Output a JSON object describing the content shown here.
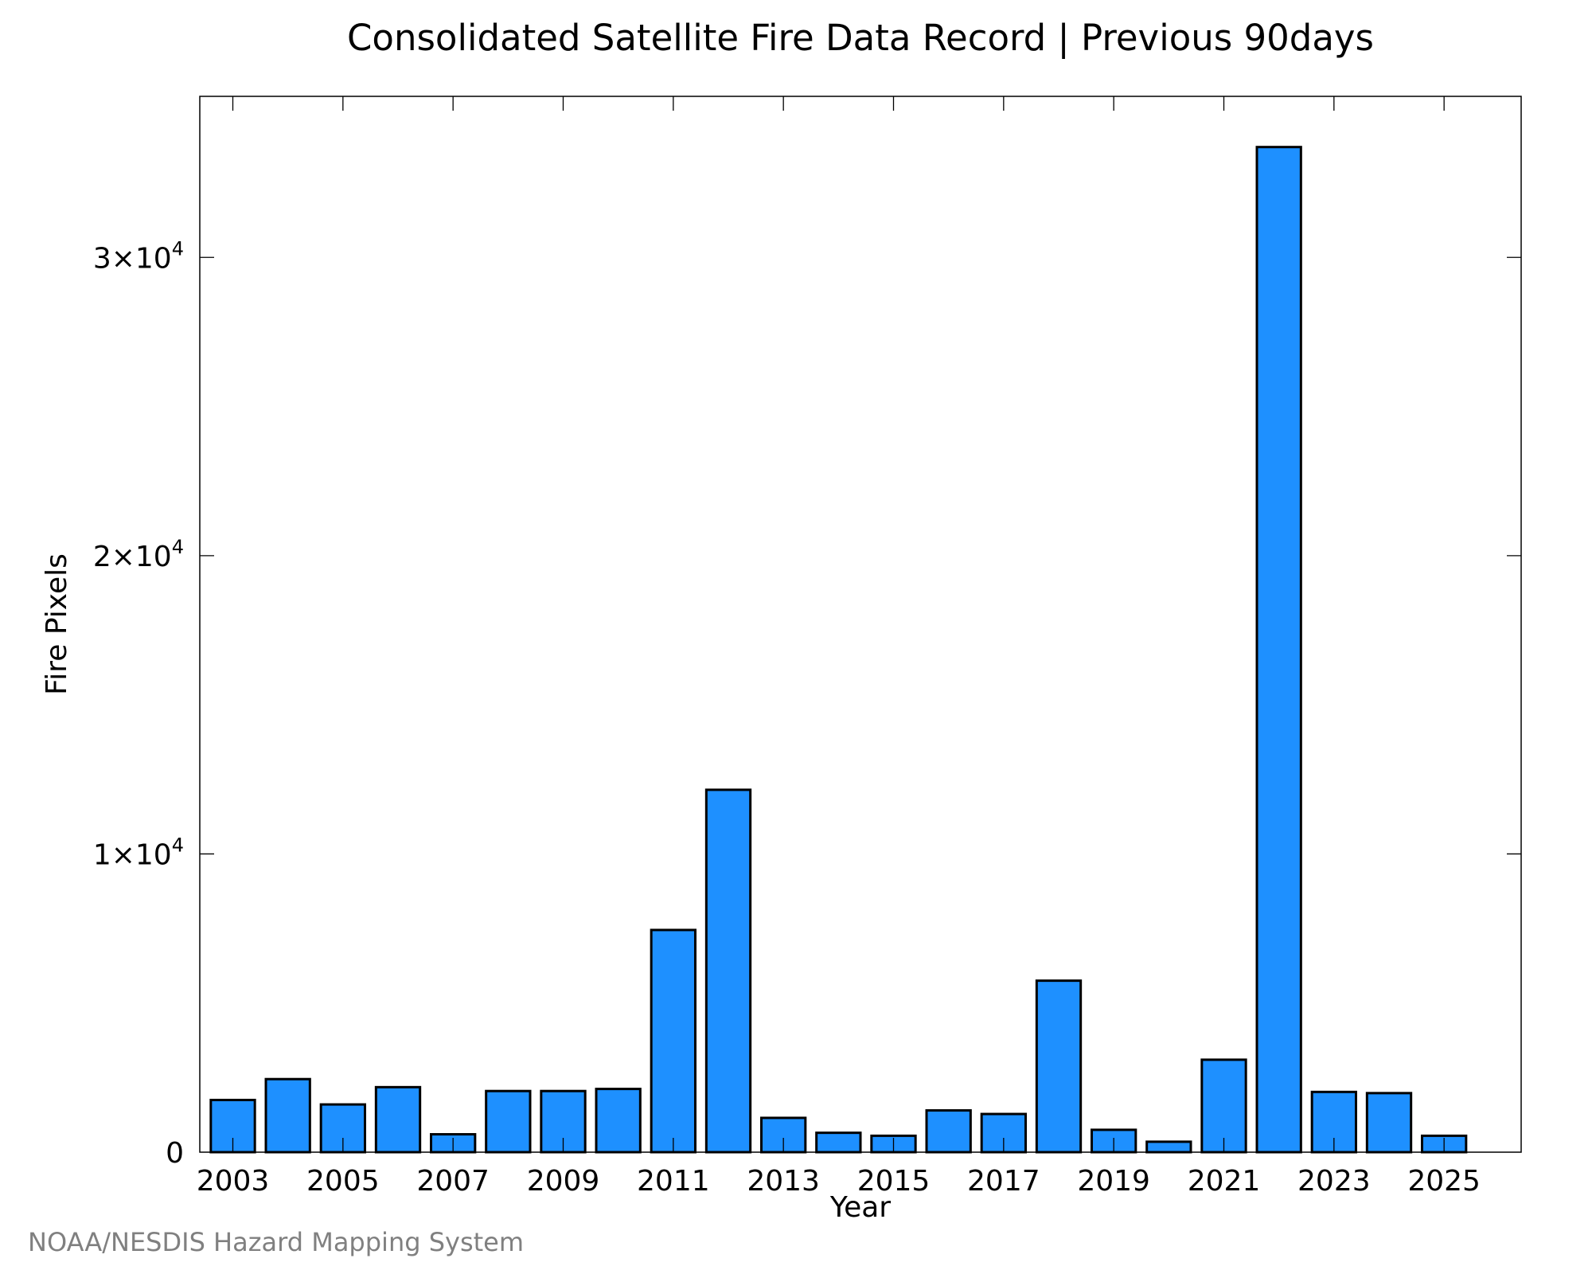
{
  "chart_data": {
    "type": "bar",
    "title": "Consolidated Satellite Fire Data Record | Previous 90days",
    "xlabel": "Year",
    "ylabel": "Fire Pixels",
    "categories": [
      "2003",
      "2004",
      "2005",
      "2006",
      "2007",
      "2008",
      "2009",
      "2010",
      "2011",
      "2012",
      "2013",
      "2014",
      "2015",
      "2016",
      "2017",
      "2018",
      "2019",
      "2020",
      "2021",
      "2022",
      "2023",
      "2024",
      "2025"
    ],
    "values": [
      1750,
      2450,
      1600,
      2180,
      600,
      2050,
      2050,
      2120,
      7450,
      12150,
      1150,
      650,
      550,
      1400,
      1280,
      5750,
      750,
      350,
      3100,
      33700,
      2020,
      1980,
      550
    ],
    "x_tick_labels": [
      "2003",
      "2005",
      "2007",
      "2009",
      "2011",
      "2013",
      "2015",
      "2017",
      "2019",
      "2021",
      "2023",
      "2025"
    ],
    "y_ticks": [
      {
        "value": 0,
        "mantissa": "0",
        "exponent": ""
      },
      {
        "value": 10000,
        "mantissa": "1×10",
        "exponent": "4"
      },
      {
        "value": 20000,
        "mantissa": "2×10",
        "exponent": "4"
      },
      {
        "value": 30000,
        "mantissa": "3×10",
        "exponent": "4"
      }
    ],
    "ylim": [
      0,
      35400
    ],
    "xlim": [
      2002.4,
      2026.4
    ],
    "bar_color": "#1e90ff",
    "grid": false,
    "legend": "none"
  },
  "footer": {
    "source": "NOAA/NESDIS Hazard Mapping System"
  }
}
